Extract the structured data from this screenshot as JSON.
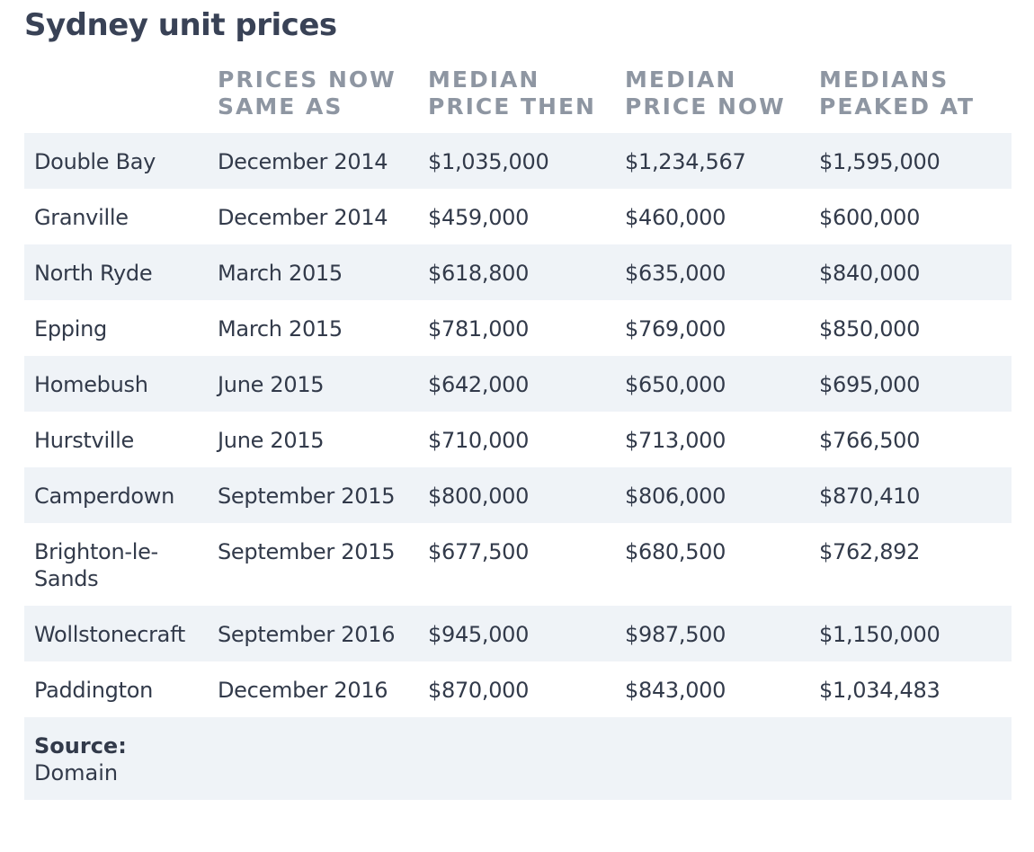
{
  "title": "Sydney unit prices",
  "columns": [
    "Prices now same as",
    "Median price then",
    "Median price now",
    "Medians peaked at"
  ],
  "column_lines": [
    [
      "PRICES NOW",
      "SAME AS"
    ],
    [
      "MEDIAN",
      "PRICE THEN"
    ],
    [
      "MEDIAN",
      "PRICE NOW"
    ],
    [
      "MEDIANS",
      "PEAKED AT"
    ]
  ],
  "rows": [
    {
      "suburb": "Double Bay",
      "same_as": "December 2014",
      "then": "$1,035,000",
      "now": "$1,234,567",
      "peak": "$1,595,000"
    },
    {
      "suburb": "Granville",
      "same_as": "December 2014",
      "then": "$459,000",
      "now": "$460,000",
      "peak": "$600,000"
    },
    {
      "suburb": "North Ryde",
      "same_as": "March 2015",
      "then": "$618,800",
      "now": "$635,000",
      "peak": "$840,000"
    },
    {
      "suburb": "Epping",
      "same_as": "March 2015",
      "then": "$781,000",
      "now": "$769,000",
      "peak": "$850,000"
    },
    {
      "suburb": "Homebush",
      "same_as": "June 2015",
      "then": "$642,000",
      "now": "$650,000",
      "peak": "$695,000"
    },
    {
      "suburb": "Hurstville",
      "same_as": "June 2015",
      "then": "$710,000",
      "now": "$713,000",
      "peak": "$766,500"
    },
    {
      "suburb": "Camperdown",
      "same_as": "September 2015",
      "then": "$800,000",
      "now": "$806,000",
      "peak": "$870,410"
    },
    {
      "suburb": "Brighton-le-Sands",
      "same_as": "September 2015",
      "then": "$677,500",
      "now": "$680,500",
      "peak": "$762,892"
    },
    {
      "suburb": "Wollstonecraft",
      "same_as": "September 2016",
      "then": "$945,000",
      "now": "$987,500",
      "peak": "$1,150,000"
    },
    {
      "suburb": "Paddington",
      "same_as": "December 2016",
      "then": "$870,000",
      "now": "$843,000",
      "peak": "$1,034,483"
    }
  ],
  "source": {
    "label": "Source:",
    "value": "Domain"
  },
  "colors": {
    "title": "#394256",
    "header_text": "#8e96a2",
    "body_text": "#323a4a",
    "stripe": "#eff3f7"
  }
}
